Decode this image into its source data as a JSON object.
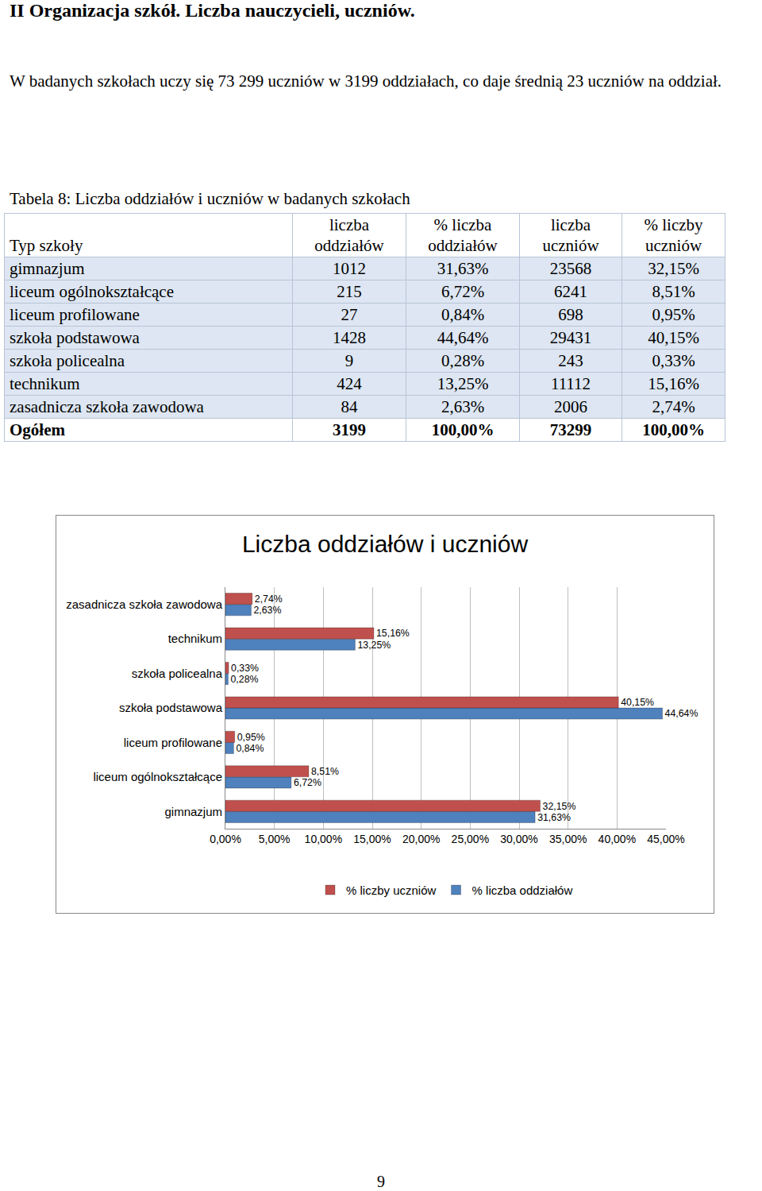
{
  "heading": "II Organizacja szkół. Liczba nauczycieli, uczniów.",
  "paragraph": "W badanych szkołach uczy się 73 299 uczniów w 3199 oddziałach, co daje średnią 23 uczniów na oddział.",
  "table": {
    "caption": "Tabela 8: Liczba oddziałów i uczniów w badanych szkołach",
    "header": [
      "Typ szkoły",
      "liczba oddziałów",
      "% liczba oddziałów",
      "liczba uczniów",
      "% liczby uczniów"
    ],
    "rows": [
      [
        "gimnazjum",
        "1012",
        "31,63%",
        "23568",
        "32,15%"
      ],
      [
        "liceum ogólnokształcące",
        "215",
        "6,72%",
        "6241",
        "8,51%"
      ],
      [
        "liceum profilowane",
        "27",
        "0,84%",
        "698",
        "0,95%"
      ],
      [
        "szkoła podstawowa",
        "1428",
        "44,64%",
        "29431",
        "40,15%"
      ],
      [
        "szkoła policealna",
        "9",
        "0,28%",
        "243",
        "0,33%"
      ],
      [
        "technikum",
        "424",
        "13,25%",
        "11112",
        "15,16%"
      ],
      [
        "zasadnicza szkoła zawodowa",
        "84",
        "2,63%",
        "2006",
        "2,74%"
      ],
      [
        "Ogółem",
        "3199",
        "100,00%",
        "73299",
        "100,00%"
      ]
    ]
  },
  "chart_data": {
    "type": "bar",
    "orientation": "horizontal",
    "title": "Liczba oddziałów i uczniów",
    "categories": [
      "gimnazjum",
      "liceum ogólnokształcące",
      "liceum profilowane",
      "szkoła podstawowa",
      "szkoła policealna",
      "technikum",
      "zasadnicza szkoła zawodowa"
    ],
    "series": [
      {
        "name": "% liczby uczniów",
        "color": "#c0504d",
        "values": [
          32.15,
          8.51,
          0.95,
          40.15,
          0.33,
          15.16,
          2.74
        ],
        "value_labels": [
          "32,15%",
          "8,51%",
          "0,95%",
          "40,15%",
          "0,33%",
          "15,16%",
          "2,74%"
        ]
      },
      {
        "name": "% liczba oddziałów",
        "color": "#4f81bd",
        "values": [
          31.63,
          6.72,
          0.84,
          44.64,
          0.28,
          13.25,
          2.63
        ],
        "value_labels": [
          "31,63%",
          "6,72%",
          "0,84%",
          "44,64%",
          "0,28%",
          "13,25%",
          "2,63%"
        ]
      }
    ],
    "xlim": [
      0,
      45
    ],
    "xticks": [
      {
        "value": 0,
        "label": "0,00%"
      },
      {
        "value": 5,
        "label": "5,00%"
      },
      {
        "value": 10,
        "label": "10,00%"
      },
      {
        "value": 15,
        "label": "15,00%"
      },
      {
        "value": 20,
        "label": "20,00%"
      },
      {
        "value": 25,
        "label": "25,00%"
      },
      {
        "value": 30,
        "label": "30,00%"
      },
      {
        "value": 35,
        "label": "35,00%"
      },
      {
        "value": 40,
        "label": "40,00%"
      },
      {
        "value": 45,
        "label": "45,00%"
      }
    ],
    "data_labels": true,
    "grid": true,
    "legend": "bottom"
  },
  "page_number": "9"
}
